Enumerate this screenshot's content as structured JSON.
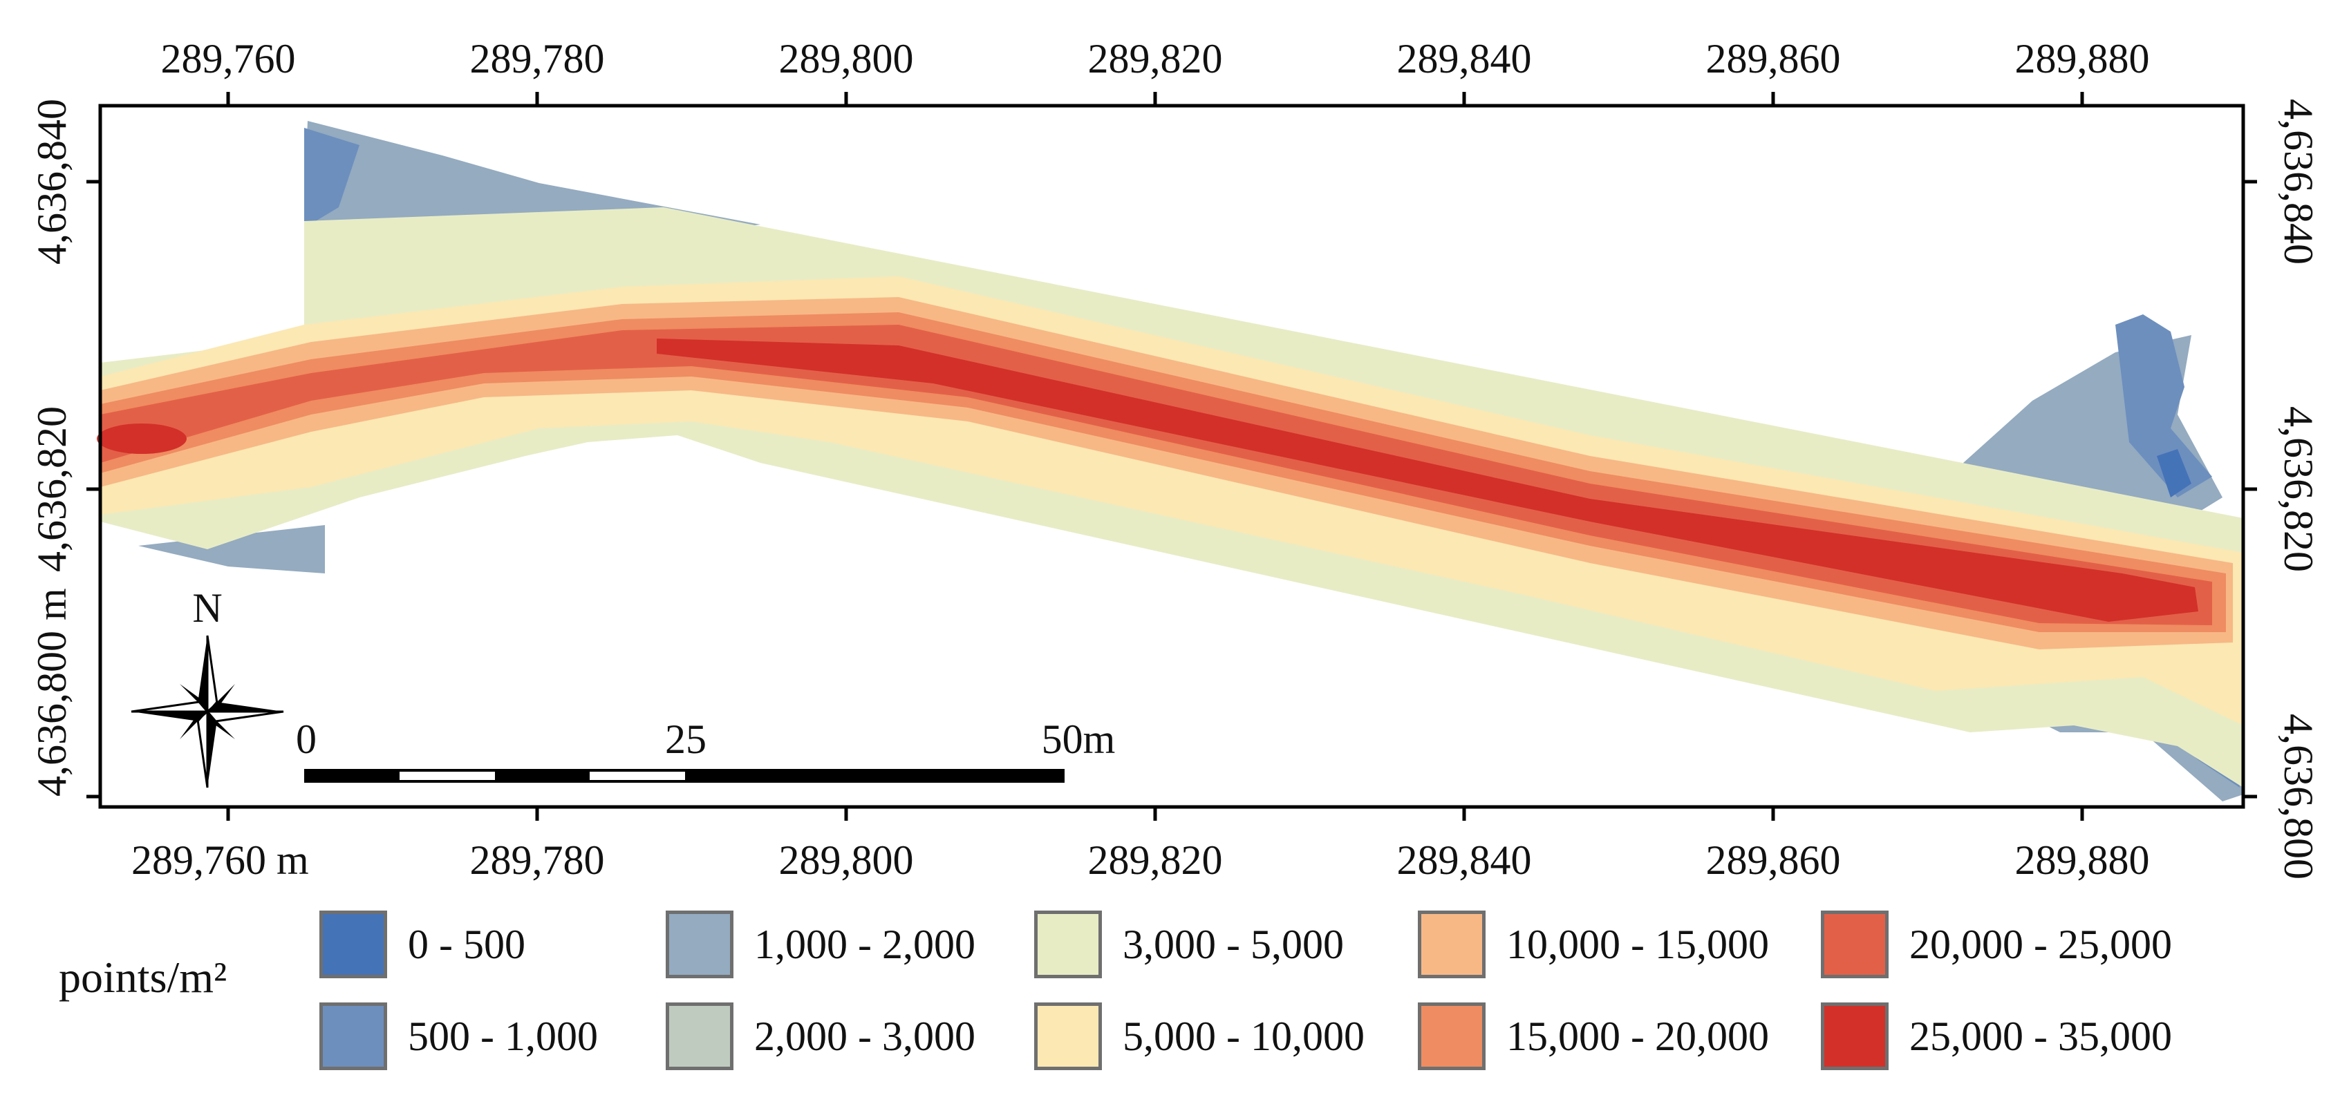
{
  "map": {
    "x_ticks_top": [
      "289,760",
      "289,780",
      "289,800",
      "289,820",
      "289,840",
      "289,860",
      "289,880"
    ],
    "x_ticks_bottom": [
      "289,760 m",
      "289,780",
      "289,800",
      "289,820",
      "289,840",
      "289,860",
      "289,880"
    ],
    "y_ticks_left": [
      "4,636,840",
      "4,636,820",
      "4,636,800 m"
    ],
    "y_ticks_right": [
      "4,636,840",
      "4,636,820",
      "4,636,800"
    ],
    "north_label": "N",
    "scale_labels": [
      "0",
      "25",
      "50m"
    ]
  },
  "legend": {
    "title": "points/m²",
    "items": [
      {
        "label": "0 - 500",
        "color": "#4573b8"
      },
      {
        "label": "500 - 1,000",
        "color": "#6d8fbe"
      },
      {
        "label": "1,000 - 2,000",
        "color": "#94abc0"
      },
      {
        "label": "2,000 - 3,000",
        "color": "#c0cbc0"
      },
      {
        "label": "3,000 - 5,000",
        "color": "#e8ecc5"
      },
      {
        "label": "5,000 - 10,000",
        "color": "#fbe8b3"
      },
      {
        "label": "10,000 - 15,000",
        "color": "#f7b886"
      },
      {
        "label": "15,000 - 20,000",
        "color": "#ef8c61"
      },
      {
        "label": "20,000 - 25,000",
        "color": "#e36048"
      },
      {
        "label": "25,000 - 35,000",
        "color": "#d3302a"
      }
    ]
  }
}
